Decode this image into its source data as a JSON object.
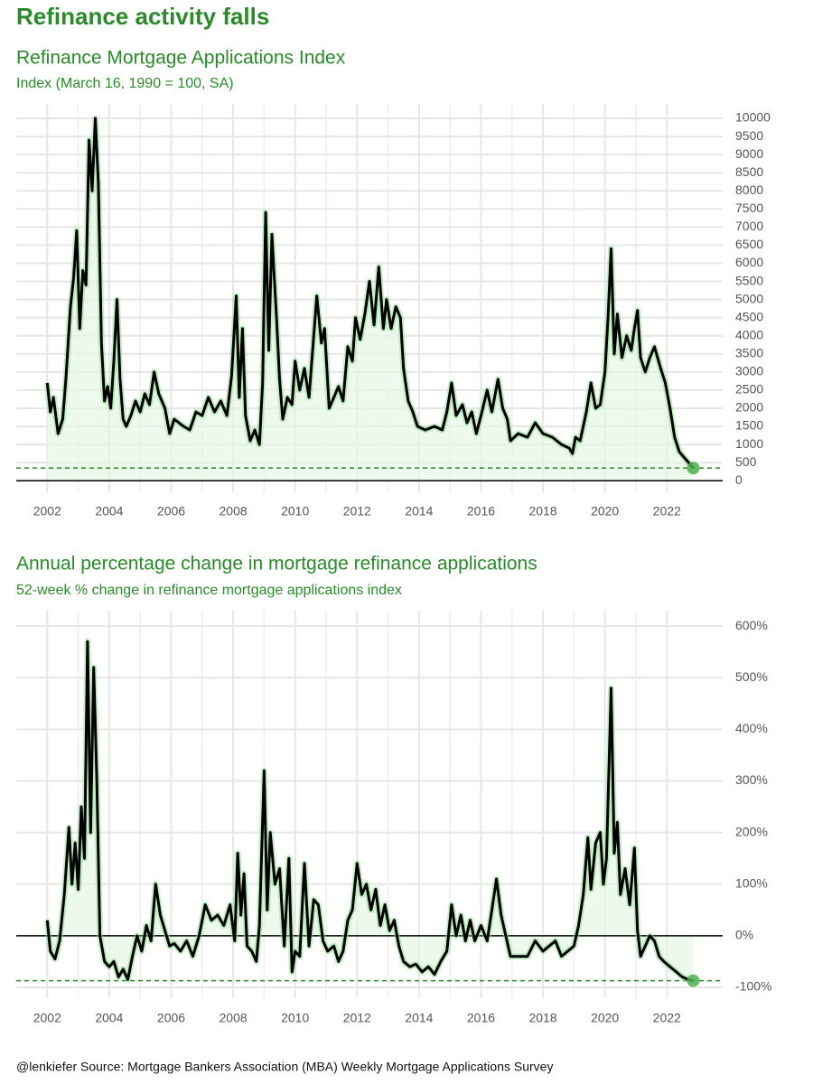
{
  "title": "Refinance activity falls",
  "caption": "@lenkiefer Source: Mortgage Bankers Association (MBA) Weekly Mortgage Applications Survey",
  "chart_data": [
    {
      "type": "line",
      "title": "Refinance Mortgage Applications Index",
      "subtitle": "Index (March 16, 1990 = 100, SA)",
      "x": [
        2002.0,
        2002.1,
        2002.2,
        2002.35,
        2002.5,
        2002.6,
        2002.75,
        2002.85,
        2002.95,
        2003.05,
        2003.15,
        2003.25,
        2003.35,
        2003.45,
        2003.55,
        2003.65,
        2003.75,
        2003.85,
        2003.95,
        2004.05,
        2004.15,
        2004.25,
        2004.35,
        2004.45,
        2004.55,
        2004.7,
        2004.85,
        2005.0,
        2005.15,
        2005.3,
        2005.45,
        2005.6,
        2005.8,
        2005.95,
        2006.1,
        2006.4,
        2006.6,
        2006.8,
        2007.0,
        2007.2,
        2007.4,
        2007.6,
        2007.8,
        2007.95,
        2008.1,
        2008.2,
        2008.3,
        2008.4,
        2008.55,
        2008.7,
        2008.85,
        2008.95,
        2009.05,
        2009.15,
        2009.25,
        2009.4,
        2009.5,
        2009.6,
        2009.75,
        2009.9,
        2010.0,
        2010.15,
        2010.3,
        2010.45,
        2010.6,
        2010.7,
        2010.85,
        2010.95,
        2011.1,
        2011.25,
        2011.4,
        2011.55,
        2011.7,
        2011.85,
        2011.95,
        2012.1,
        2012.25,
        2012.4,
        2012.55,
        2012.7,
        2012.85,
        2012.95,
        2013.1,
        2013.25,
        2013.4,
        2013.5,
        2013.65,
        2013.8,
        2013.95,
        2014.2,
        2014.5,
        2014.75,
        2014.9,
        2015.05,
        2015.2,
        2015.4,
        2015.55,
        2015.7,
        2015.85,
        2016.0,
        2016.2,
        2016.35,
        2016.55,
        2016.7,
        2016.85,
        2016.95,
        2017.2,
        2017.5,
        2017.75,
        2018.0,
        2018.3,
        2018.6,
        2018.85,
        2018.95,
        2019.05,
        2019.2,
        2019.4,
        2019.55,
        2019.7,
        2019.85,
        2020.0,
        2020.1,
        2020.2,
        2020.3,
        2020.4,
        2020.55,
        2020.7,
        2020.85,
        2020.95,
        2021.05,
        2021.15,
        2021.3,
        2021.45,
        2021.6,
        2021.8,
        2021.95,
        2022.1,
        2022.25,
        2022.4,
        2022.55,
        2022.7,
        2022.85
      ],
      "series": [
        {
          "color": "#000000",
          "fill": "#e6f7e6",
          "values": [
            2700,
            1900,
            2300,
            1300,
            1700,
            2800,
            4800,
            5600,
            6900,
            4200,
            5800,
            5400,
            9400,
            8000,
            10000,
            8200,
            3800,
            2200,
            2600,
            2000,
            3300,
            5000,
            2800,
            1700,
            1500,
            1800,
            2200,
            1900,
            2400,
            2100,
            3000,
            2400,
            2000,
            1300,
            1700,
            1500,
            1400,
            1900,
            1800,
            2300,
            1900,
            2200,
            1800,
            2900,
            5100,
            2300,
            4200,
            1800,
            1100,
            1400,
            1000,
            2700,
            7400,
            3600,
            6800,
            4500,
            2800,
            1700,
            2300,
            2100,
            3300,
            2500,
            3100,
            2300,
            4000,
            5100,
            3800,
            4200,
            2000,
            2300,
            2600,
            2200,
            3700,
            3300,
            4500,
            3900,
            4600,
            5500,
            4300,
            5900,
            4200,
            5000,
            4200,
            4800,
            4500,
            3100,
            2200,
            1900,
            1500,
            1400,
            1500,
            1400,
            1900,
            2700,
            1800,
            2100,
            1600,
            1900,
            1300,
            1800,
            2500,
            1900,
            2800,
            2000,
            1700,
            1100,
            1300,
            1200,
            1600,
            1300,
            1200,
            1000,
            900,
            750,
            1200,
            1100,
            1900,
            2700,
            2000,
            2100,
            3000,
            4500,
            6400,
            3500,
            4600,
            3400,
            4000,
            3600,
            4200,
            4700,
            3400,
            3000,
            3400,
            3700,
            3100,
            2700,
            2000,
            1200,
            800,
            650,
            500,
            350
          ]
        }
      ],
      "point_color": "#4caf50",
      "xlim": [
        2001,
        2023.8
      ],
      "xticks": [
        2002,
        2004,
        2006,
        2008,
        2010,
        2012,
        2014,
        2016,
        2018,
        2020,
        2022
      ],
      "ylim": [
        -320,
        10400
      ],
      "yticks": [
        0,
        500,
        1000,
        1500,
        2000,
        2500,
        3000,
        3500,
        4000,
        4500,
        5000,
        5500,
        6000,
        6500,
        7000,
        7500,
        8000,
        8500,
        9000,
        9500,
        10000
      ],
      "grid": true
    },
    {
      "type": "line",
      "title": "Annual percentage change in mortgage refinance applications",
      "subtitle": "52-week % change in refinance mortgage applications index",
      "x": [
        2002.0,
        2002.1,
        2002.25,
        2002.4,
        2002.55,
        2002.7,
        2002.8,
        2002.9,
        2003.0,
        2003.1,
        2003.2,
        2003.3,
        2003.4,
        2003.5,
        2003.6,
        2003.7,
        2003.85,
        2004.0,
        2004.15,
        2004.3,
        2004.45,
        2004.6,
        2004.75,
        2004.9,
        2005.05,
        2005.2,
        2005.35,
        2005.5,
        2005.65,
        2005.8,
        2005.95,
        2006.1,
        2006.3,
        2006.5,
        2006.7,
        2006.9,
        2007.1,
        2007.3,
        2007.5,
        2007.7,
        2007.9,
        2008.05,
        2008.15,
        2008.25,
        2008.35,
        2008.45,
        2008.6,
        2008.75,
        2008.85,
        2009.0,
        2009.1,
        2009.2,
        2009.35,
        2009.5,
        2009.65,
        2009.8,
        2009.9,
        2010.0,
        2010.15,
        2010.3,
        2010.45,
        2010.6,
        2010.75,
        2010.9,
        2011.05,
        2011.25,
        2011.4,
        2011.55,
        2011.7,
        2011.85,
        2012.0,
        2012.15,
        2012.3,
        2012.45,
        2012.6,
        2012.75,
        2012.9,
        2013.05,
        2013.2,
        2013.35,
        2013.5,
        2013.7,
        2013.9,
        2014.1,
        2014.3,
        2014.5,
        2014.7,
        2014.9,
        2015.05,
        2015.2,
        2015.35,
        2015.5,
        2015.65,
        2015.8,
        2016.0,
        2016.2,
        2016.35,
        2016.5,
        2016.65,
        2016.8,
        2016.95,
        2017.2,
        2017.5,
        2017.75,
        2018.0,
        2018.2,
        2018.4,
        2018.6,
        2018.8,
        2019.0,
        2019.15,
        2019.3,
        2019.45,
        2019.55,
        2019.7,
        2019.85,
        2019.95,
        2020.05,
        2020.2,
        2020.3,
        2020.4,
        2020.5,
        2020.65,
        2020.8,
        2020.95,
        2021.05,
        2021.15,
        2021.3,
        2021.45,
        2021.6,
        2021.75,
        2021.9,
        2022.1,
        2022.3,
        2022.5,
        2022.7,
        2022.85
      ],
      "series": [
        {
          "color": "#000000",
          "fill": "#e6f7e6",
          "values": [
            30,
            -30,
            -45,
            -10,
            80,
            210,
            100,
            180,
            90,
            250,
            150,
            570,
            200,
            520,
            300,
            0,
            -50,
            -60,
            -50,
            -80,
            -65,
            -85,
            -40,
            0,
            -30,
            20,
            -10,
            100,
            40,
            10,
            -20,
            -15,
            -30,
            -10,
            -40,
            0,
            60,
            30,
            40,
            20,
            60,
            -10,
            160,
            40,
            120,
            -20,
            -30,
            -50,
            20,
            320,
            50,
            200,
            100,
            130,
            -20,
            150,
            -70,
            -30,
            -40,
            140,
            -20,
            70,
            60,
            -10,
            -30,
            -20,
            -50,
            -30,
            30,
            50,
            140,
            80,
            100,
            50,
            90,
            20,
            60,
            10,
            30,
            -20,
            -50,
            -60,
            -55,
            -70,
            -60,
            -75,
            -50,
            -30,
            60,
            0,
            40,
            -10,
            30,
            -10,
            20,
            -10,
            50,
            110,
            40,
            0,
            -40,
            -40,
            -40,
            -10,
            -30,
            -20,
            -10,
            -40,
            -30,
            -20,
            20,
            80,
            190,
            90,
            180,
            200,
            100,
            150,
            480,
            160,
            220,
            80,
            130,
            60,
            170,
            10,
            -40,
            -20,
            0,
            -10,
            -40,
            -50,
            -60,
            -70,
            -80,
            -85,
            -87
          ]
        }
      ],
      "point_color": "#4caf50",
      "xlim": [
        2001,
        2023.8
      ],
      "xticks": [
        2002,
        2004,
        2006,
        2008,
        2010,
        2012,
        2014,
        2016,
        2018,
        2020,
        2022
      ],
      "ylim": [
        -121,
        630
      ],
      "yticks": [
        {
          "value": -100,
          "label": "-100%"
        },
        {
          "value": 0,
          "label": "0%"
        },
        {
          "value": 100,
          "label": "100%"
        },
        {
          "value": 200,
          "label": "200%"
        },
        {
          "value": 300,
          "label": "300%"
        },
        {
          "value": 400,
          "label": "400%"
        },
        {
          "value": 500,
          "label": "500%"
        },
        {
          "value": 600,
          "label": "600%"
        }
      ],
      "grid": true
    }
  ]
}
